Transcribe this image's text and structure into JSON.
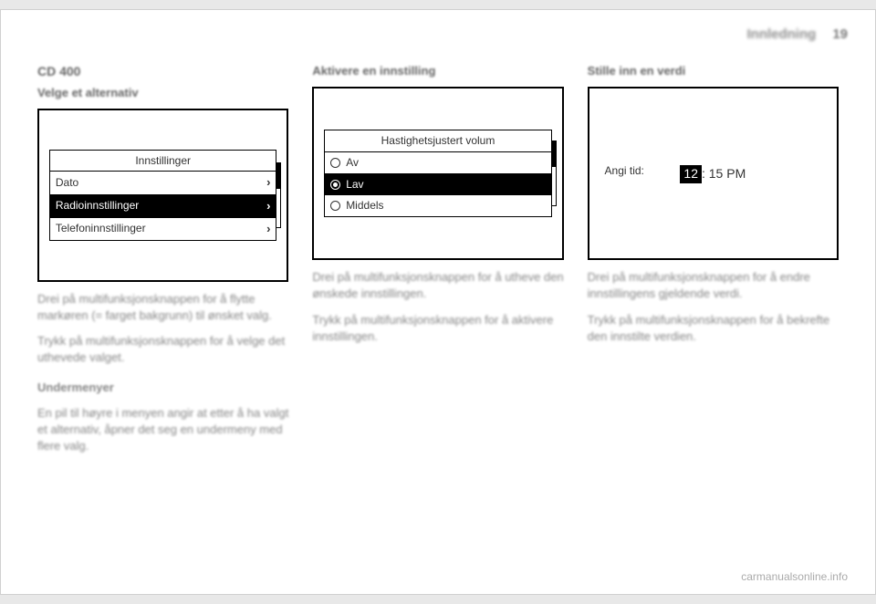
{
  "header": {
    "title": "Innledning",
    "page_number": "19"
  },
  "col1": {
    "heading": "CD 400",
    "subheading": "Velge et alternativ",
    "screenshot": {
      "title": "Innstillinger",
      "rows": [
        {
          "label": "Dato",
          "selected": false
        },
        {
          "label": "Radioinnstillinger",
          "selected": true
        },
        {
          "label": "Telefoninnstillinger",
          "selected": false
        }
      ]
    },
    "p1": "Drei på multifunksjonsknappen for å flytte markøren (= farget bakgrunn) til ønsket valg.",
    "p2": "Trykk på multifunksjonsknappen for å velge det uthevede valget.",
    "submenu_head": "Undermenyer",
    "p3": "En pil til høyre i menyen angir at etter å ha valgt et alternativ, åpner det seg en undermeny med flere valg."
  },
  "col2": {
    "heading": "Aktivere en innstilling",
    "screenshot": {
      "title": "Hastighetsjustert volum",
      "rows": [
        {
          "label": "Av",
          "selected": false,
          "checked": false
        },
        {
          "label": "Lav",
          "selected": true,
          "checked": true
        },
        {
          "label": "Middels",
          "selected": false,
          "checked": false
        }
      ]
    },
    "p1": "Drei på multifunksjonsknappen for å utheve den ønskede innstillingen.",
    "p2": "Trykk på multifunksjonsknappen for å aktivere innstillingen."
  },
  "col3": {
    "heading": "Stille inn en verdi",
    "screenshot": {
      "label": "Angi tid:",
      "hour": "12",
      "rest": ": 15 PM"
    },
    "p1": "Drei på multifunksjonsknappen for å endre innstillingens gjeldende verdi.",
    "p2": "Trykk på multifunksjonsknappen for å bekrefte den innstilte verdien."
  },
  "footer": "carmanualsonline.info"
}
